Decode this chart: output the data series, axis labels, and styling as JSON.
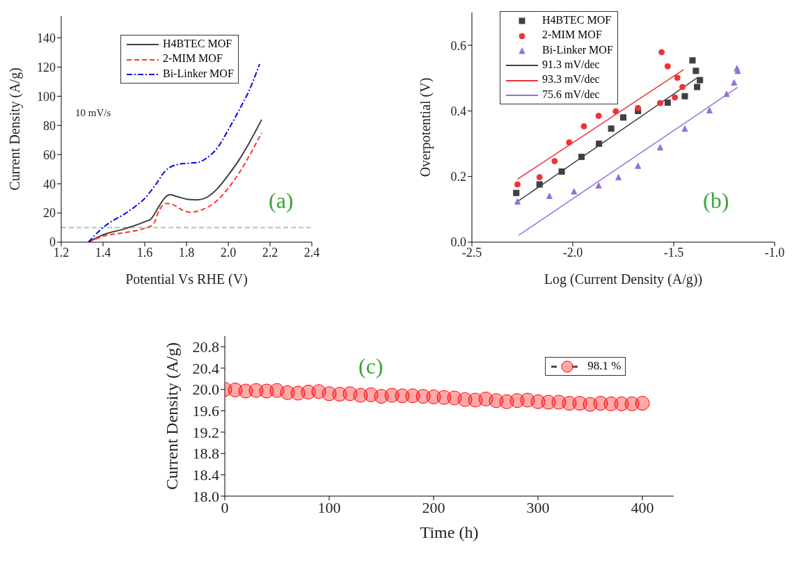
{
  "chart_data": [
    {
      "type": "line",
      "xlabel": "Potential Vs RHE (V)",
      "ylabel": "Current Density (A/g)",
      "xlim": [
        1.2,
        2.4
      ],
      "xticks": [
        1.2,
        1.4,
        1.6,
        1.8,
        {
          "value": 2,
          "label": "2.0"
        },
        2.2,
        2.4
      ],
      "ylim": [
        0,
        155
      ],
      "yticks": [
        0,
        20,
        40,
        60,
        80,
        100,
        120,
        140
      ],
      "legend": "top",
      "annotations": [
        "10 mV/s",
        "(a)"
      ],
      "ref_lines": [
        {
          "axis": "y",
          "value": 10,
          "color": "#3cb043",
          "line_style": "dashed"
        }
      ],
      "series": [
        {
          "name": "H4BTEC MOF",
          "color": "#404040",
          "line_style": "solid",
          "x": [
            1.33,
            1.4,
            1.5,
            1.6,
            1.63,
            1.67,
            1.7,
            1.72,
            1.76,
            1.8,
            1.85,
            1.9,
            1.95,
            2.0,
            2.05,
            2.1,
            2.16
          ],
          "values": [
            0,
            5,
            9,
            14,
            16,
            25,
            31,
            32.5,
            31,
            29.5,
            29,
            31,
            37,
            46,
            56,
            68,
            84
          ]
        },
        {
          "name": "2-MIM MOF",
          "color": "#ff3333",
          "line_style": "dashed",
          "x": [
            1.33,
            1.4,
            1.5,
            1.6,
            1.64,
            1.67,
            1.7,
            1.73,
            1.78,
            1.82,
            1.87,
            1.95,
            2.0,
            2.05,
            2.1,
            2.16
          ],
          "values": [
            0,
            4,
            6.5,
            9.5,
            12,
            22,
            26.5,
            26,
            22,
            20.5,
            22,
            29,
            37,
            47,
            59,
            75
          ]
        },
        {
          "name": "Bi-Linker MOF",
          "color": "#0000ee",
          "line_style": "dashdot",
          "x": [
            1.33,
            1.4,
            1.45,
            1.5,
            1.55,
            1.6,
            1.65,
            1.7,
            1.75,
            1.8,
            1.85,
            1.9,
            1.95,
            2.0,
            2.05,
            2.1,
            2.15
          ],
          "values": [
            0,
            10,
            15,
            19,
            24,
            30,
            39,
            49,
            53,
            54,
            54.5,
            58,
            65,
            77,
            90,
            104,
            122
          ]
        }
      ]
    },
    {
      "type": "scatter",
      "xlabel": "Log (Current Density (A/g))",
      "ylabel": "Overpotential (V)",
      "xlim": [
        -2.5,
        -1.0
      ],
      "xticks": [
        -2.5,
        {
          "value": -2,
          "label": "-2.0"
        },
        -1.5,
        {
          "value": -1,
          "label": "-1.0"
        }
      ],
      "ylim": [
        0,
        0.7
      ],
      "yticks": [
        {
          "value": 0,
          "label": "0.0"
        },
        0.2,
        0.4,
        0.6
      ],
      "legend": "top left",
      "annotations": [
        "(b)"
      ],
      "series": [
        {
          "name": "H4BTEC MOF",
          "color": "#404040",
          "marker": "square",
          "x": [
            -2.28,
            -2.165,
            -2.055,
            -1.957,
            -1.87,
            -1.81,
            -1.75,
            -1.677,
            -1.53,
            -1.445,
            -1.384,
            -1.37,
            -1.39,
            -1.407
          ],
          "values": [
            0.15,
            0.176,
            0.215,
            0.26,
            0.3,
            0.346,
            0.38,
            0.4,
            0.425,
            0.445,
            0.473,
            0.494,
            0.522,
            0.554
          ]
        },
        {
          "name": "2-MIM MOF",
          "color": "#ee3333",
          "marker": "circle",
          "x": [
            -2.274,
            -2.165,
            -2.09,
            -2.018,
            -1.945,
            -1.872,
            -1.787,
            -1.677,
            -1.567,
            -1.494,
            -1.457,
            -1.482,
            -1.53,
            -1.56
          ],
          "values": [
            0.176,
            0.198,
            0.247,
            0.304,
            0.353,
            0.385,
            0.399,
            0.409,
            0.424,
            0.441,
            0.473,
            0.501,
            0.536,
            0.579
          ]
        },
        {
          "name": "Bi-Linker MOF",
          "color": "#9370db",
          "marker": "triangle",
          "x": [
            -2.274,
            -2.116,
            -1.994,
            -1.872,
            -1.774,
            -1.677,
            -1.567,
            -1.445,
            -1.323,
            -1.238,
            -1.201,
            -1.183,
            -1.187
          ],
          "values": [
            0.124,
            0.141,
            0.155,
            0.173,
            0.198,
            0.233,
            0.289,
            0.346,
            0.402,
            0.452,
            0.487,
            0.522,
            0.53
          ]
        },
        {
          "name": "91.3 mV/dec",
          "type": "line",
          "color": "#404040",
          "x": [
            -2.28,
            -1.384
          ],
          "values": [
            0.121,
            0.501
          ]
        },
        {
          "name": "93.3 mV/dec",
          "type": "line",
          "color": "#ee3333",
          "x": [
            -2.274,
            -1.451
          ],
          "values": [
            0.192,
            0.526
          ]
        },
        {
          "name": "75.6 mV/dec",
          "type": "line",
          "color": "#9370db",
          "x": [
            -2.268,
            -1.183
          ],
          "values": [
            0.021,
            0.472
          ]
        }
      ]
    },
    {
      "type": "scatter",
      "xlabel": "Time (h)",
      "ylabel": "Current Density (A/g)",
      "xlim": [
        0,
        430
      ],
      "xticks": [
        0,
        100,
        200,
        300,
        400
      ],
      "ylim": [
        18,
        21
      ],
      "yticks": [
        {
          "value": 18,
          "label": "18.0"
        },
        18.4,
        18.8,
        19.2,
        19.6,
        {
          "value": 20,
          "label": "20.0"
        },
        20.4,
        20.8
      ],
      "legend": "top right",
      "marker": "circle",
      "annotations": [
        "(c)"
      ],
      "series": [
        {
          "name": "98.1 %",
          "color": "#ff0000",
          "x": [
            0,
            10,
            20,
            30,
            40,
            50,
            60,
            70,
            80,
            90,
            100,
            110,
            120,
            130,
            140,
            150,
            160,
            170,
            180,
            190,
            200,
            210,
            220,
            230,
            240,
            250,
            260,
            270,
            280,
            290,
            300,
            310,
            320,
            330,
            340,
            350,
            360,
            370,
            380,
            390,
            400
          ],
          "values": [
            20.0,
            19.99,
            19.97,
            19.98,
            19.97,
            19.98,
            19.94,
            19.93,
            19.95,
            19.96,
            19.92,
            19.91,
            19.92,
            19.89,
            19.9,
            19.87,
            19.89,
            19.88,
            19.88,
            19.87,
            19.86,
            19.85,
            19.84,
            19.81,
            19.8,
            19.82,
            19.79,
            19.77,
            19.79,
            19.8,
            19.77,
            19.76,
            19.76,
            19.74,
            19.74,
            19.72,
            19.74,
            19.73,
            19.73,
            19.73,
            19.74
          ]
        }
      ]
    }
  ]
}
